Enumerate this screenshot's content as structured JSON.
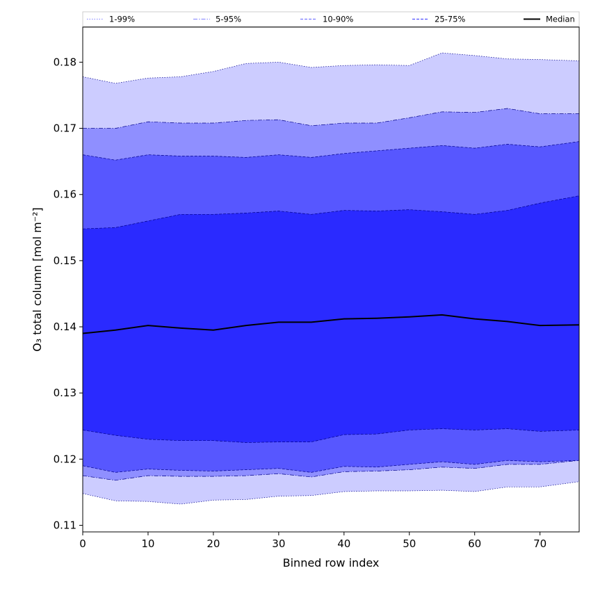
{
  "chart_data": {
    "type": "area",
    "xlabel": "Binned row index",
    "ylabel": "O₃ total column [mol m⁻²]",
    "xlim": [
      0,
      76
    ],
    "ylim": [
      0.109,
      0.1853
    ],
    "xticks": [
      0,
      10,
      20,
      30,
      40,
      50,
      60,
      70
    ],
    "yticks": [
      0.11,
      0.12,
      0.13,
      0.14,
      0.15,
      0.16,
      0.17,
      0.18
    ],
    "ytick_labels": [
      "0.11",
      "0.12",
      "0.13",
      "0.14",
      "0.15",
      "0.16",
      "0.17",
      "0.18"
    ],
    "legend_position": "top, above plot area",
    "x": [
      0,
      5,
      10,
      15,
      20,
      25,
      30,
      35,
      40,
      45,
      50,
      55,
      60,
      65,
      70,
      76
    ],
    "bands": [
      {
        "name": "1-99%",
        "color": "#ccccff",
        "line_style": "dotted",
        "lower": [
          0.1148,
          0.1137,
          0.1136,
          0.1132,
          0.1138,
          0.1139,
          0.1144,
          0.1145,
          0.1151,
          0.1152,
          0.1152,
          0.1153,
          0.1151,
          0.1158,
          0.1158,
          0.1166
        ],
        "upper": [
          0.1778,
          0.1768,
          0.1776,
          0.1778,
          0.1786,
          0.1798,
          0.18,
          0.1792,
          0.1795,
          0.1796,
          0.1795,
          0.1814,
          0.181,
          0.1805,
          0.1804,
          0.1802
        ]
      },
      {
        "name": "5-95%",
        "color": "#8f8fff",
        "line_style": "dashdot",
        "lower": [
          0.1175,
          0.1168,
          0.1175,
          0.1174,
          0.1174,
          0.1175,
          0.1178,
          0.1173,
          0.1181,
          0.1182,
          0.1184,
          0.1188,
          0.1186,
          0.1192,
          0.1192,
          0.1198
        ],
        "upper": [
          0.17,
          0.17,
          0.171,
          0.1708,
          0.1708,
          0.1712,
          0.1713,
          0.1704,
          0.1708,
          0.1708,
          0.1716,
          0.1725,
          0.1724,
          0.173,
          0.1722,
          0.1722
        ]
      },
      {
        "name": "10-90%",
        "color": "#5757ff",
        "line_style": "dashed",
        "lower": [
          0.119,
          0.118,
          0.1185,
          0.1183,
          0.1182,
          0.1184,
          0.1186,
          0.118,
          0.1189,
          0.1188,
          0.1192,
          0.1196,
          0.1192,
          0.1198,
          0.1196,
          0.1198
        ],
        "upper": [
          0.166,
          0.1652,
          0.166,
          0.1658,
          0.1658,
          0.1656,
          0.166,
          0.1656,
          0.1662,
          0.1666,
          0.167,
          0.1674,
          0.167,
          0.1676,
          0.1672,
          0.168
        ]
      },
      {
        "name": "25-75%",
        "color": "#2a2aff",
        "line_style": "dashed",
        "lower": [
          0.1244,
          0.1236,
          0.123,
          0.1228,
          0.1228,
          0.1225,
          0.1226,
          0.1226,
          0.1237,
          0.1238,
          0.1244,
          0.1246,
          0.1244,
          0.1246,
          0.1242,
          0.1244
        ],
        "upper": [
          0.1548,
          0.155,
          0.156,
          0.157,
          0.157,
          0.1572,
          0.1575,
          0.157,
          0.1576,
          0.1575,
          0.1577,
          0.1574,
          0.157,
          0.1576,
          0.1587,
          0.1598
        ]
      }
    ],
    "median": {
      "name": "Median",
      "color": "#000000",
      "values": [
        0.139,
        0.1395,
        0.1402,
        0.1398,
        0.1395,
        0.1402,
        0.1407,
        0.1407,
        0.1412,
        0.1413,
        0.1415,
        0.1418,
        0.1412,
        0.1408,
        0.1402,
        0.1403
      ]
    },
    "legend": [
      {
        "label": "1-99%",
        "style": "dotted",
        "color": "#8080ff"
      },
      {
        "label": "5-95%",
        "style": "dashdot",
        "color": "#8080ff"
      },
      {
        "label": "10-90%",
        "style": "dashed",
        "color": "#6060ff"
      },
      {
        "label": "25-75%",
        "style": "dashed",
        "color": "#3030ff"
      },
      {
        "label": "Median",
        "style": "solid",
        "color": "#000000"
      }
    ]
  }
}
